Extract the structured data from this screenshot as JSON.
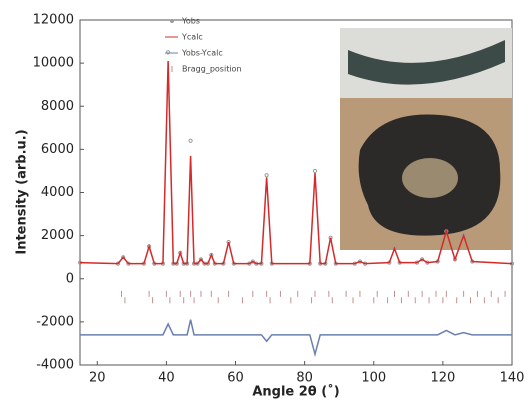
{
  "chart_data": {
    "type": "line",
    "xlabel": "Angle 2θ (˚)",
    "ylabel": "Intensity (arb.u.)",
    "x": [
      15,
      26,
      27.5,
      29,
      33.5,
      35,
      36.5,
      39,
      40.5,
      42,
      43,
      44,
      45,
      46,
      47,
      48,
      49,
      50,
      51,
      52,
      53,
      54,
      56.5,
      58,
      59.5,
      64,
      65,
      66,
      67.5,
      69,
      70.5,
      81.5,
      83,
      84.5,
      86,
      87.5,
      89,
      94.5,
      96,
      97.5,
      104.5,
      106,
      107.5,
      112.5,
      114,
      115.5,
      118.5,
      121,
      123.5,
      126,
      128.5,
      140
    ],
    "series": [
      {
        "name": "Yobs",
        "color": "#9a9a9a",
        "style": "points",
        "values": [
          750,
          700,
          1000,
          700,
          700,
          1500,
          700,
          700,
          10500,
          700,
          700,
          1200,
          700,
          700,
          6400,
          700,
          700,
          900,
          700,
          700,
          1100,
          700,
          700,
          1700,
          700,
          700,
          800,
          700,
          700,
          4800,
          700,
          700,
          5000,
          700,
          700,
          1900,
          700,
          700,
          800,
          700,
          750,
          1400,
          750,
          750,
          900,
          750,
          800,
          2200,
          900,
          2000,
          800,
          700
        ]
      },
      {
        "name": "Ycalc",
        "color": "#d42a2a",
        "style": "line",
        "values": [
          750,
          700,
          1000,
          700,
          700,
          1500,
          700,
          700,
          10100,
          700,
          700,
          1200,
          700,
          700,
          5700,
          700,
          700,
          900,
          700,
          700,
          1100,
          700,
          700,
          1700,
          700,
          700,
          800,
          700,
          700,
          4700,
          700,
          700,
          4900,
          700,
          700,
          1900,
          700,
          700,
          800,
          700,
          750,
          1400,
          750,
          750,
          900,
          750,
          800,
          2200,
          900,
          2000,
          800,
          700
        ]
      },
      {
        "name": "Yobs-Ycalc",
        "color": "#6a7fb0",
        "style": "line",
        "values": [
          -2600,
          -2600,
          -2600,
          -2600,
          -2600,
          -2600,
          -2600,
          -2600,
          -2100,
          -2600,
          -2600,
          -2600,
          -2600,
          -2600,
          -1900,
          -2600,
          -2600,
          -2600,
          -2600,
          -2600,
          -2600,
          -2600,
          -2600,
          -2600,
          -2600,
          -2600,
          -2600,
          -2600,
          -2600,
          -2900,
          -2600,
          -2600,
          -3500,
          -2600,
          -2600,
          -2600,
          -2600,
          -2600,
          -2600,
          -2600,
          -2600,
          -2600,
          -2600,
          -2600,
          -2600,
          -2600,
          -2600,
          -2400,
          -2600,
          -2500,
          -2600,
          -2600
        ]
      },
      {
        "name": "Bragg_position",
        "color": "#c09090",
        "style": "ticks",
        "x": [
          27,
          35,
          40,
          44,
          47,
          50,
          53,
          58,
          65,
          69,
          73,
          78,
          83,
          87,
          92,
          96,
          101,
          106,
          110,
          114,
          118,
          121,
          126,
          130,
          134,
          138,
          28,
          36,
          41,
          45,
          48,
          55,
          62,
          70,
          76,
          82,
          88,
          94,
          100,
          104,
          108,
          112,
          116,
          120,
          124,
          128,
          132,
          136
        ],
        "values": [
          -700,
          -700,
          -700,
          -700,
          -700,
          -700,
          -700,
          -700,
          -700,
          -700,
          -700,
          -700,
          -700,
          -700,
          -700,
          -700,
          -700,
          -700,
          -700,
          -700,
          -700,
          -700,
          -700,
          -700,
          -700,
          -700,
          -1000,
          -1000,
          -1000,
          -1000,
          -1000,
          -1000,
          -1000,
          -1000,
          -1000,
          -1000,
          -1000,
          -1000,
          -1000,
          -1000,
          -1000,
          -1000,
          -1000,
          -1000,
          -1000,
          -1000,
          -1000,
          -1000
        ]
      }
    ],
    "xlim": [
      15,
      140
    ],
    "xticks": [
      20,
      40,
      60,
      80,
      100,
      120,
      140
    ],
    "ylim": [
      -4000,
      12000
    ],
    "yticks": [
      -4000,
      -2000,
      0,
      2000,
      4000,
      6000,
      8000,
      10000,
      12000
    ]
  }
}
